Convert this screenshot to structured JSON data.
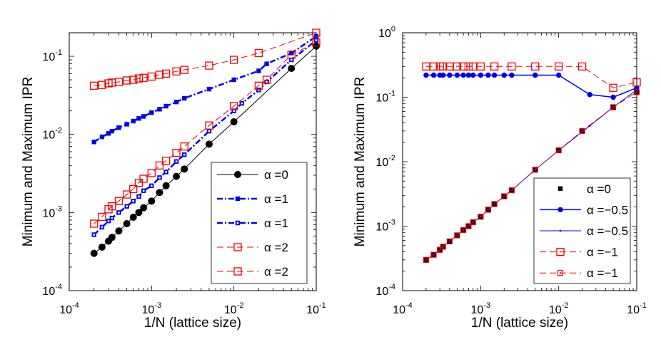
{
  "chart_data": [
    {
      "type": "line",
      "scale": "log-log",
      "title": "",
      "xlabel": "1/N (lattice size)",
      "ylabel": "Minimum and Maximum IPR",
      "xlim": [
        0.0001,
        0.1
      ],
      "ylim": [
        0.0001,
        0.2
      ],
      "x_ticks": [
        {
          "base": "10",
          "exp": "-4"
        },
        {
          "base": "10",
          "exp": "-3"
        },
        {
          "base": "10",
          "exp": "-2"
        },
        {
          "base": "10",
          "exp": "-1"
        }
      ],
      "y_ticks": [
        {
          "base": "10",
          "exp": "-4"
        },
        {
          "base": "10",
          "exp": "-3"
        },
        {
          "base": "10",
          "exp": "-2"
        },
        {
          "base": "10",
          "exp": "-1"
        }
      ],
      "legend_position": "bottom-right",
      "series": [
        {
          "name": "α =0",
          "color": "#000000",
          "dash": "",
          "line_width": 1,
          "marker": "circle",
          "x": [
            0.0002,
            0.00025,
            0.0003,
            0.00033,
            0.0004,
            0.0005,
            0.0006,
            0.0007,
            0.0008,
            0.001,
            0.00125,
            0.0015,
            0.002,
            0.0025,
            0.005,
            0.01,
            0.05,
            0.1
          ],
          "y": [
            0.0003,
            0.00036,
            0.00043,
            0.00048,
            0.00058,
            0.00072,
            0.00087,
            0.001,
            0.00115,
            0.0014,
            0.0018,
            0.0022,
            0.0029,
            0.0036,
            0.0075,
            0.0145,
            0.07,
            0.135
          ]
        },
        {
          "name": "α =1",
          "color": "#0000ee",
          "dash": "8,3,2,3",
          "line_width": 2.5,
          "marker": "filled-square",
          "x": [
            0.0002,
            0.00025,
            0.0003,
            0.00033,
            0.0004,
            0.0005,
            0.0006,
            0.0007,
            0.0008,
            0.001,
            0.00125,
            0.0015,
            0.002,
            0.0025,
            0.005,
            0.01,
            0.02,
            0.025,
            0.05,
            0.1
          ],
          "y": [
            0.008,
            0.0093,
            0.0103,
            0.011,
            0.0122,
            0.0135,
            0.0148,
            0.016,
            0.017,
            0.019,
            0.021,
            0.023,
            0.026,
            0.029,
            0.038,
            0.05,
            0.065,
            0.08,
            0.11,
            0.18
          ]
        },
        {
          "name": "α =1",
          "color": "#0000ee",
          "dash": "8,3,2,3",
          "line_width": 2.5,
          "marker": "dotted-square",
          "x": [
            0.0002,
            0.00025,
            0.0003,
            0.00033,
            0.0004,
            0.0005,
            0.0006,
            0.0007,
            0.0008,
            0.001,
            0.00125,
            0.0015,
            0.002,
            0.0025,
            0.005,
            0.01,
            0.0125,
            0.02,
            0.025,
            0.05,
            0.1
          ],
          "y": [
            0.00052,
            0.00065,
            0.00078,
            0.00085,
            0.001,
            0.0012,
            0.0014,
            0.0016,
            0.0019,
            0.0022,
            0.0028,
            0.0033,
            0.0045,
            0.0055,
            0.011,
            0.02,
            0.025,
            0.037,
            0.047,
            0.09,
            0.16
          ]
        },
        {
          "name": "α =2",
          "color": "#ee0000",
          "dash": "9,5",
          "line_width": 1,
          "marker": "open-square",
          "x": [
            0.0002,
            0.00025,
            0.0003,
            0.00033,
            0.0004,
            0.0005,
            0.0006,
            0.0007,
            0.0008,
            0.001,
            0.00125,
            0.0015,
            0.002,
            0.0025,
            0.005,
            0.01,
            0.02,
            0.1
          ],
          "y": [
            0.042,
            0.043,
            0.045,
            0.046,
            0.047,
            0.049,
            0.05,
            0.052,
            0.053,
            0.055,
            0.058,
            0.06,
            0.064,
            0.067,
            0.076,
            0.09,
            0.11,
            0.2
          ]
        },
        {
          "name": "α =2",
          "color": "#ee0000",
          "dash": "9,5",
          "line_width": 1,
          "marker": "open-square",
          "x": [
            0.0002,
            0.00025,
            0.0003,
            0.00033,
            0.0004,
            0.0005,
            0.0006,
            0.0007,
            0.0008,
            0.001,
            0.00125,
            0.0015,
            0.002,
            0.0025,
            0.005,
            0.01,
            0.02,
            0.025,
            0.05,
            0.1
          ],
          "y": [
            0.00072,
            0.00088,
            0.0011,
            0.0012,
            0.0014,
            0.0017,
            0.002,
            0.0024,
            0.0027,
            0.0032,
            0.004,
            0.0046,
            0.0058,
            0.007,
            0.013,
            0.023,
            0.042,
            0.05,
            0.105,
            0.15
          ]
        }
      ]
    },
    {
      "type": "line",
      "scale": "log-log",
      "title": "",
      "xlabel": "1/N (lattice size)",
      "ylabel": "Minimum and Maximum IPR",
      "xlim": [
        0.0001,
        0.1
      ],
      "ylim": [
        0.0001,
        1
      ],
      "x_ticks": [
        {
          "base": "10",
          "exp": "-4"
        },
        {
          "base": "10",
          "exp": "-3"
        },
        {
          "base": "10",
          "exp": "-2"
        },
        {
          "base": "10",
          "exp": "-1"
        }
      ],
      "y_ticks": [
        {
          "base": "10",
          "exp": "-4"
        },
        {
          "base": "10",
          "exp": "-3"
        },
        {
          "base": "10",
          "exp": "-2"
        },
        {
          "base": "10",
          "exp": "-1"
        },
        {
          "base": "10",
          "exp": "0"
        }
      ],
      "legend_position": "bottom-right",
      "series": [
        {
          "name": "α =0",
          "color": "#000000",
          "dash": "none",
          "line_width": 1,
          "marker": "filled-square",
          "x": [
            0.0002,
            0.00025,
            0.0003,
            0.00033,
            0.0004,
            0.0005,
            0.0006,
            0.0007,
            0.0008,
            0.001,
            0.00125,
            0.0015,
            0.002,
            0.0025,
            0.005,
            0.01,
            0.02,
            0.05,
            0.1
          ],
          "y": [
            0.0003,
            0.00036,
            0.00043,
            0.00048,
            0.00058,
            0.00072,
            0.00087,
            0.001,
            0.00115,
            0.0014,
            0.0018,
            0.0022,
            0.0029,
            0.0036,
            0.0075,
            0.015,
            0.03,
            0.07,
            0.12
          ]
        },
        {
          "name": "α =−0.5",
          "color": "#0000ee",
          "dash": "",
          "line_width": 1.5,
          "marker": "filled-circle",
          "x": [
            0.0002,
            0.00025,
            0.0003,
            0.00033,
            0.0004,
            0.0005,
            0.0006,
            0.0007,
            0.0008,
            0.001,
            0.00125,
            0.0015,
            0.002,
            0.0025,
            0.005,
            0.01,
            0.025,
            0.05,
            0.1
          ],
          "y": [
            0.22,
            0.22,
            0.22,
            0.22,
            0.22,
            0.22,
            0.22,
            0.22,
            0.22,
            0.22,
            0.22,
            0.22,
            0.22,
            0.22,
            0.22,
            0.22,
            0.11,
            0.1,
            0.14
          ]
        },
        {
          "name": "α =−0.5",
          "color": "#0000ee",
          "dash": "",
          "line_width": 1,
          "marker": "small-dot",
          "x": [
            0.0002,
            0.00025,
            0.0003,
            0.00033,
            0.0004,
            0.0005,
            0.0006,
            0.0007,
            0.0008,
            0.001,
            0.00125,
            0.0015,
            0.002,
            0.0025,
            0.005,
            0.01,
            0.025,
            0.05,
            0.1
          ],
          "y": [
            0.0003,
            0.00036,
            0.00043,
            0.00048,
            0.00058,
            0.00072,
            0.00087,
            0.001,
            0.00115,
            0.0014,
            0.0018,
            0.0022,
            0.0029,
            0.0036,
            0.0075,
            0.015,
            0.036,
            0.07,
            0.13
          ]
        },
        {
          "name": "α =−1",
          "color": "#ee0000",
          "dash": "9,5",
          "line_width": 1,
          "marker": "open-square",
          "x": [
            0.0002,
            0.00025,
            0.0003,
            0.00033,
            0.0004,
            0.0005,
            0.0006,
            0.0007,
            0.0008,
            0.001,
            0.0015,
            0.0025,
            0.005,
            0.01,
            0.02,
            0.05,
            0.1
          ],
          "y": [
            0.3,
            0.3,
            0.3,
            0.3,
            0.3,
            0.3,
            0.3,
            0.3,
            0.3,
            0.3,
            0.3,
            0.3,
            0.3,
            0.3,
            0.3,
            0.14,
            0.17
          ]
        },
        {
          "name": "α =−1",
          "color": "#ee0000",
          "dash": "9,5",
          "line_width": 1,
          "marker": "open-square-small",
          "x": [
            0.0002,
            0.00025,
            0.0003,
            0.00033,
            0.0004,
            0.0005,
            0.0006,
            0.0007,
            0.0008,
            0.001,
            0.00125,
            0.0015,
            0.002,
            0.0025,
            0.005,
            0.01,
            0.02,
            0.05,
            0.1
          ],
          "y": [
            0.0003,
            0.00036,
            0.00043,
            0.00048,
            0.00058,
            0.00072,
            0.00087,
            0.001,
            0.00115,
            0.0014,
            0.0018,
            0.0022,
            0.0029,
            0.0036,
            0.0075,
            0.015,
            0.03,
            0.07,
            0.12
          ]
        }
      ]
    }
  ]
}
